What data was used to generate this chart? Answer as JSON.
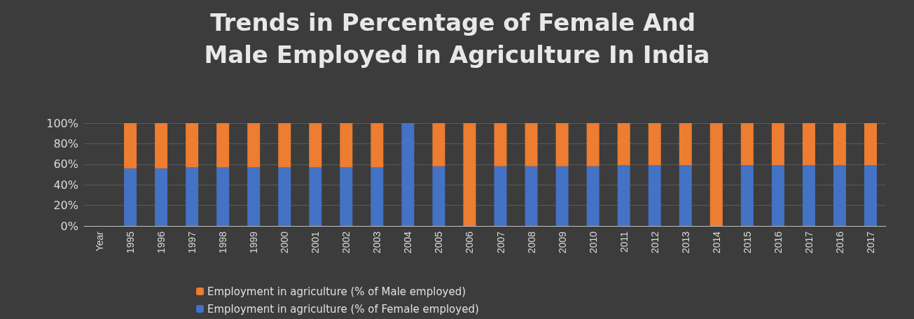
{
  "chart_data": {
    "type": "bar",
    "title": "Trends in Percentage of Female And Male Employed in Agriculture In India",
    "categories": [
      "Year",
      "1995",
      "1996",
      "1997",
      "1998",
      "1999",
      "2000",
      "2001",
      "2002",
      "2003",
      "2004",
      "2005",
      "2006",
      "2007",
      "2008",
      "2009",
      "2010",
      "2011",
      "2012",
      "2013",
      "2014",
      "2015",
      "2016",
      "2017",
      "2016",
      "2017"
    ],
    "stacked": true,
    "series": [
      {
        "name": "Employment in agriculture (% of Female employed)",
        "color": "#4472c4",
        "values": [
          null,
          56,
          56,
          57,
          57,
          57,
          57,
          57,
          57,
          57,
          100,
          58,
          0,
          58,
          58,
          58,
          58,
          59,
          59,
          59,
          0,
          59,
          59,
          59,
          59,
          59
        ]
      },
      {
        "name": "Employment in agriculture (% of Male employed)",
        "color": "#ed7d31",
        "values": [
          null,
          44,
          44,
          43,
          43,
          43,
          43,
          43,
          43,
          43,
          0,
          42,
          100,
          42,
          42,
          42,
          42,
          41,
          41,
          41,
          100,
          41,
          41,
          41,
          41,
          41
        ]
      }
    ],
    "ylim": [
      0,
      100
    ],
    "yticks": [
      {
        "value": 0,
        "label": "0%"
      },
      {
        "value": 20,
        "label": "20%"
      },
      {
        "value": 40,
        "label": "40%"
      },
      {
        "value": 60,
        "label": "60%"
      },
      {
        "value": 80,
        "label": "80%"
      },
      {
        "value": 100,
        "label": "100%"
      }
    ],
    "grid": "y",
    "legend": "bottom"
  }
}
